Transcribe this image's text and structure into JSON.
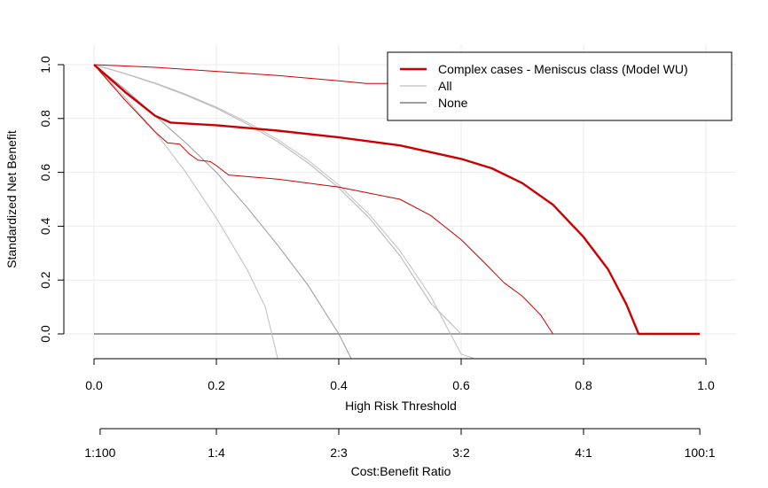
{
  "chart_data": {
    "type": "line",
    "title": "",
    "xlabel": "High Risk Threshold",
    "ylabel": "Standardized Net Benefit",
    "xlim": [
      0,
      1
    ],
    "ylim": [
      0,
      1
    ],
    "x_ticks": [
      "0.0",
      "0.2",
      "0.4",
      "0.6",
      "0.8",
      "1.0"
    ],
    "y_ticks": [
      "0.0",
      "0.2",
      "0.4",
      "0.6",
      "0.8",
      "1.0"
    ],
    "secondary_axis_label": "Cost:Benefit Ratio",
    "secondary_ticks": [
      {
        "x": 0.01,
        "label": "1:100"
      },
      {
        "x": 0.2,
        "label": "1:4"
      },
      {
        "x": 0.4,
        "label": "2:3"
      },
      {
        "x": 0.6,
        "label": "3:2"
      },
      {
        "x": 0.8,
        "label": "4:1"
      },
      {
        "x": 0.99,
        "label": "100:1"
      }
    ],
    "grid": true,
    "legend_position": "top-right",
    "legend": [
      {
        "label": "Complex cases - Meniscus class (Model WU)",
        "color": "#cc0000"
      },
      {
        "label": "All",
        "color": "#bebebe"
      },
      {
        "label": "None",
        "color": "#666666"
      }
    ],
    "series": [
      {
        "name": "Complex cases - Meniscus class (Model WU)",
        "color": "#cc0000",
        "role": "main",
        "points": [
          [
            0.0,
            1.0
          ],
          [
            0.05,
            0.9
          ],
          [
            0.1,
            0.81
          ],
          [
            0.125,
            0.785
          ],
          [
            0.2,
            0.775
          ],
          [
            0.3,
            0.755
          ],
          [
            0.4,
            0.73
          ],
          [
            0.5,
            0.7
          ],
          [
            0.6,
            0.65
          ],
          [
            0.65,
            0.615
          ],
          [
            0.7,
            0.56
          ],
          [
            0.75,
            0.48
          ],
          [
            0.8,
            0.36
          ],
          [
            0.84,
            0.24
          ],
          [
            0.87,
            0.11
          ],
          [
            0.89,
            0.0
          ],
          [
            0.99,
            0.0
          ]
        ]
      },
      {
        "name": "",
        "color": "#cc0000",
        "role": "ci-upper",
        "points": [
          [
            0.0,
            1.0
          ],
          [
            0.1,
            0.99
          ],
          [
            0.2,
            0.975
          ],
          [
            0.3,
            0.96
          ],
          [
            0.4,
            0.94
          ],
          [
            0.445,
            0.93
          ],
          [
            0.5,
            0.93
          ]
        ]
      },
      {
        "name": "",
        "color": "#cc0000",
        "role": "ci-lower",
        "points": [
          [
            0.0,
            1.0
          ],
          [
            0.05,
            0.87
          ],
          [
            0.1,
            0.75
          ],
          [
            0.12,
            0.71
          ],
          [
            0.14,
            0.705
          ],
          [
            0.155,
            0.67
          ],
          [
            0.17,
            0.645
          ],
          [
            0.19,
            0.64
          ],
          [
            0.2,
            0.625
          ],
          [
            0.22,
            0.59
          ],
          [
            0.3,
            0.575
          ],
          [
            0.4,
            0.545
          ],
          [
            0.5,
            0.5
          ],
          [
            0.55,
            0.44
          ],
          [
            0.6,
            0.35
          ],
          [
            0.64,
            0.26
          ],
          [
            0.67,
            0.19
          ],
          [
            0.7,
            0.14
          ],
          [
            0.73,
            0.07
          ],
          [
            0.75,
            0.0
          ]
        ]
      },
      {
        "name": "All",
        "color": "#bebebe",
        "role": "main",
        "points": [
          [
            0.0,
            1.0
          ],
          [
            0.05,
            0.967
          ],
          [
            0.1,
            0.93
          ],
          [
            0.15,
            0.887
          ],
          [
            0.2,
            0.838
          ],
          [
            0.25,
            0.78
          ],
          [
            0.3,
            0.714
          ],
          [
            0.35,
            0.635
          ],
          [
            0.4,
            0.542
          ],
          [
            0.45,
            0.43
          ],
          [
            0.5,
            0.29
          ],
          [
            0.55,
            0.115
          ],
          [
            0.6,
            0.0
          ]
        ]
      },
      {
        "name": "",
        "color": "#bebebe",
        "role": "ci-upper",
        "points": [
          [
            0.0,
            1.0
          ],
          [
            0.05,
            0.968
          ],
          [
            0.1,
            0.932
          ],
          [
            0.15,
            0.89
          ],
          [
            0.2,
            0.842
          ],
          [
            0.25,
            0.787
          ],
          [
            0.3,
            0.722
          ],
          [
            0.35,
            0.645
          ],
          [
            0.4,
            0.553
          ],
          [
            0.45,
            0.443
          ],
          [
            0.5,
            0.309
          ],
          [
            0.55,
            0.14
          ],
          [
            0.6,
            -0.075
          ],
          [
            0.62,
            -0.09
          ]
        ]
      },
      {
        "name": "",
        "color": "#bebebe",
        "role": "ci-lower",
        "points": [
          [
            0.0,
            1.0
          ],
          [
            0.05,
            0.88
          ],
          [
            0.1,
            0.75
          ],
          [
            0.15,
            0.6
          ],
          [
            0.2,
            0.43
          ],
          [
            0.25,
            0.24
          ],
          [
            0.28,
            0.1
          ],
          [
            0.3,
            -0.09
          ]
        ]
      },
      {
        "name": "",
        "color": "#999999",
        "role": "ci-mid",
        "points": [
          [
            0.0,
            1.0
          ],
          [
            0.05,
            0.91
          ],
          [
            0.1,
            0.81
          ],
          [
            0.15,
            0.71
          ],
          [
            0.2,
            0.6
          ],
          [
            0.25,
            0.47
          ],
          [
            0.3,
            0.33
          ],
          [
            0.35,
            0.18
          ],
          [
            0.4,
            0.0
          ],
          [
            0.42,
            -0.09
          ]
        ]
      },
      {
        "name": "None",
        "color": "#666666",
        "role": "main",
        "points": [
          [
            0.0,
            0.0
          ],
          [
            0.99,
            0.0
          ]
        ]
      }
    ]
  }
}
